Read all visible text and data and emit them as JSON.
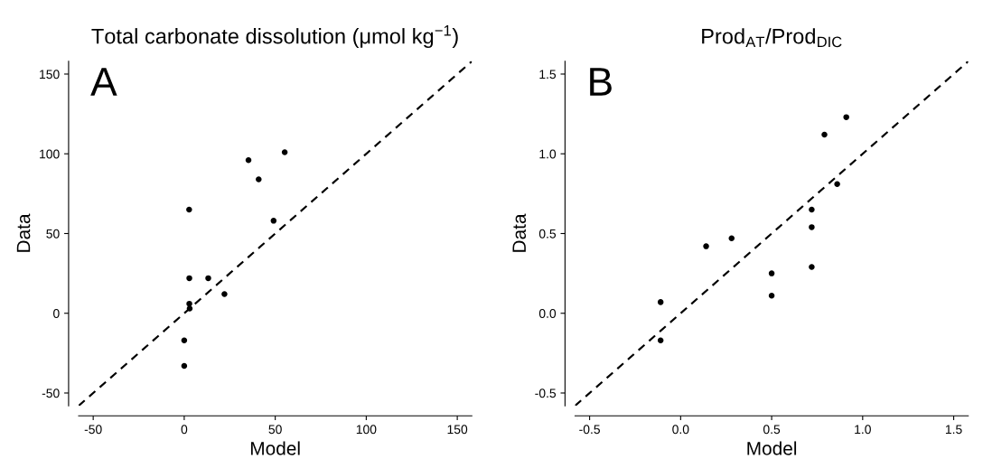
{
  "chart_data": [
    {
      "type": "scatter",
      "title": "Total carbonate dissolution (μmol kg$^{−1}$)",
      "xlabel": "Model",
      "ylabel": "Data",
      "annotations": [
        "A"
      ],
      "series": [
        {
          "color": "#000000",
          "marker": "circle",
          "x": [
            2.7,
            35.3,
            55.2,
            40.9,
            49.1,
            2.8,
            13.2,
            22.1,
            2.8,
            3.0,
            0.0,
            0.0
          ],
          "values": [
            65,
            96,
            101,
            84,
            58,
            22,
            22,
            12,
            6,
            3,
            -17,
            -33
          ]
        },
        {
          "type": "line",
          "color": "#000000",
          "marker": "none",
          "line_style": "dashed",
          "x": [
            -58,
            158
          ],
          "values": [
            -58,
            158
          ]
        }
      ],
      "xlim": [
        -58,
        158
      ],
      "ylim": [
        -58,
        158
      ],
      "xticks": [
        -50,
        0,
        50,
        100,
        150
      ],
      "yticks": [
        -50,
        0,
        50,
        100,
        150
      ],
      "grid": false
    },
    {
      "type": "scatter",
      "title": "Prod$_{AT}$/Prod$_{DIC}$",
      "xlabel": "Model",
      "ylabel": "Data",
      "annotations": [
        "B"
      ],
      "series": [
        {
          "color": "#000000",
          "marker": "circle",
          "x": [
            0.91,
            0.79,
            0.86,
            0.72,
            0.72,
            0.72,
            0.5,
            0.5,
            0.28,
            0.14,
            -0.11,
            -0.11
          ],
          "values": [
            1.23,
            1.12,
            0.81,
            0.65,
            0.54,
            0.29,
            0.25,
            0.11,
            0.47,
            0.42,
            0.07,
            -0.17
          ]
        },
        {
          "type": "line",
          "color": "#000000",
          "marker": "none",
          "line_style": "dashed",
          "x": [
            -0.58,
            1.58
          ],
          "values": [
            -0.58,
            1.58
          ]
        }
      ],
      "xlim": [
        -0.58,
        1.58
      ],
      "ylim": [
        -0.58,
        1.58
      ],
      "xticks": [
        -0.5,
        {
          "value": 0,
          "label": "0.0"
        },
        0.5,
        {
          "value": 1,
          "label": "1.0"
        },
        1.5
      ],
      "yticks": [
        -0.5,
        {
          "value": 0,
          "label": "0.0"
        },
        0.5,
        {
          "value": 1,
          "label": "1.0"
        },
        1.5
      ],
      "grid": false
    }
  ]
}
